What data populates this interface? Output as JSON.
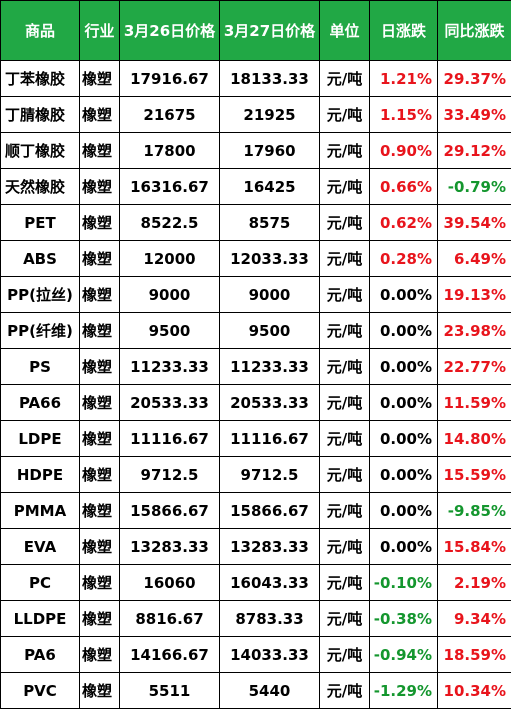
{
  "table": {
    "headers": [
      "商品",
      "行业",
      "3月26日价格",
      "3月27日价格",
      "单位",
      "日涨跌",
      "同比涨跌"
    ],
    "colors": {
      "header_bg": "#21a845",
      "up": "#e8141c",
      "down": "#14962e",
      "flat": "#000000"
    },
    "rows": [
      {
        "name": "丁苯橡胶",
        "industry": "橡塑",
        "price_0326": "17916.67",
        "price_0327": "18133.33",
        "unit": "元/吨",
        "daily_change": "1.21%",
        "yoy_change": "29.37%"
      },
      {
        "name": "丁腈橡胶",
        "industry": "橡塑",
        "price_0326": "21675",
        "price_0327": "21925",
        "unit": "元/吨",
        "daily_change": "1.15%",
        "yoy_change": "33.49%"
      },
      {
        "name": "顺丁橡胶",
        "industry": "橡塑",
        "price_0326": "17800",
        "price_0327": "17960",
        "unit": "元/吨",
        "daily_change": "0.90%",
        "yoy_change": "29.12%"
      },
      {
        "name": "天然橡胶",
        "industry": "橡塑",
        "price_0326": "16316.67",
        "price_0327": "16425",
        "unit": "元/吨",
        "daily_change": "0.66%",
        "yoy_change": "-0.79%"
      },
      {
        "name": "PET",
        "industry": "橡塑",
        "price_0326": "8522.5",
        "price_0327": "8575",
        "unit": "元/吨",
        "daily_change": "0.62%",
        "yoy_change": "39.54%"
      },
      {
        "name": "ABS",
        "industry": "橡塑",
        "price_0326": "12000",
        "price_0327": "12033.33",
        "unit": "元/吨",
        "daily_change": "0.28%",
        "yoy_change": "6.49%"
      },
      {
        "name": "PP(拉丝)",
        "industry": "橡塑",
        "price_0326": "9000",
        "price_0327": "9000",
        "unit": "元/吨",
        "daily_change": "0.00%",
        "yoy_change": "19.13%"
      },
      {
        "name": "PP(纤维)",
        "industry": "橡塑",
        "price_0326": "9500",
        "price_0327": "9500",
        "unit": "元/吨",
        "daily_change": "0.00%",
        "yoy_change": "23.98%"
      },
      {
        "name": "PS",
        "industry": "橡塑",
        "price_0326": "11233.33",
        "price_0327": "11233.33",
        "unit": "元/吨",
        "daily_change": "0.00%",
        "yoy_change": "22.77%"
      },
      {
        "name": "PA66",
        "industry": "橡塑",
        "price_0326": "20533.33",
        "price_0327": "20533.33",
        "unit": "元/吨",
        "daily_change": "0.00%",
        "yoy_change": "11.59%"
      },
      {
        "name": "LDPE",
        "industry": "橡塑",
        "price_0326": "11116.67",
        "price_0327": "11116.67",
        "unit": "元/吨",
        "daily_change": "0.00%",
        "yoy_change": "14.80%"
      },
      {
        "name": "HDPE",
        "industry": "橡塑",
        "price_0326": "9712.5",
        "price_0327": "9712.5",
        "unit": "元/吨",
        "daily_change": "0.00%",
        "yoy_change": "15.59%"
      },
      {
        "name": "PMMA",
        "industry": "橡塑",
        "price_0326": "15866.67",
        "price_0327": "15866.67",
        "unit": "元/吨",
        "daily_change": "0.00%",
        "yoy_change": "-9.85%"
      },
      {
        "name": "EVA",
        "industry": "橡塑",
        "price_0326": "13283.33",
        "price_0327": "13283.33",
        "unit": "元/吨",
        "daily_change": "0.00%",
        "yoy_change": "15.84%"
      },
      {
        "name": "PC",
        "industry": "橡塑",
        "price_0326": "16060",
        "price_0327": "16043.33",
        "unit": "元/吨",
        "daily_change": "-0.10%",
        "yoy_change": "2.19%"
      },
      {
        "name": "LLDPE",
        "industry": "橡塑",
        "price_0326": "8816.67",
        "price_0327": "8783.33",
        "unit": "元/吨",
        "daily_change": "-0.38%",
        "yoy_change": "9.34%"
      },
      {
        "name": "PA6",
        "industry": "橡塑",
        "price_0326": "14166.67",
        "price_0327": "14033.33",
        "unit": "元/吨",
        "daily_change": "-0.94%",
        "yoy_change": "18.59%"
      },
      {
        "name": "PVC",
        "industry": "橡塑",
        "price_0326": "5511",
        "price_0327": "5440",
        "unit": "元/吨",
        "daily_change": "-1.29%",
        "yoy_change": "10.34%"
      }
    ]
  }
}
